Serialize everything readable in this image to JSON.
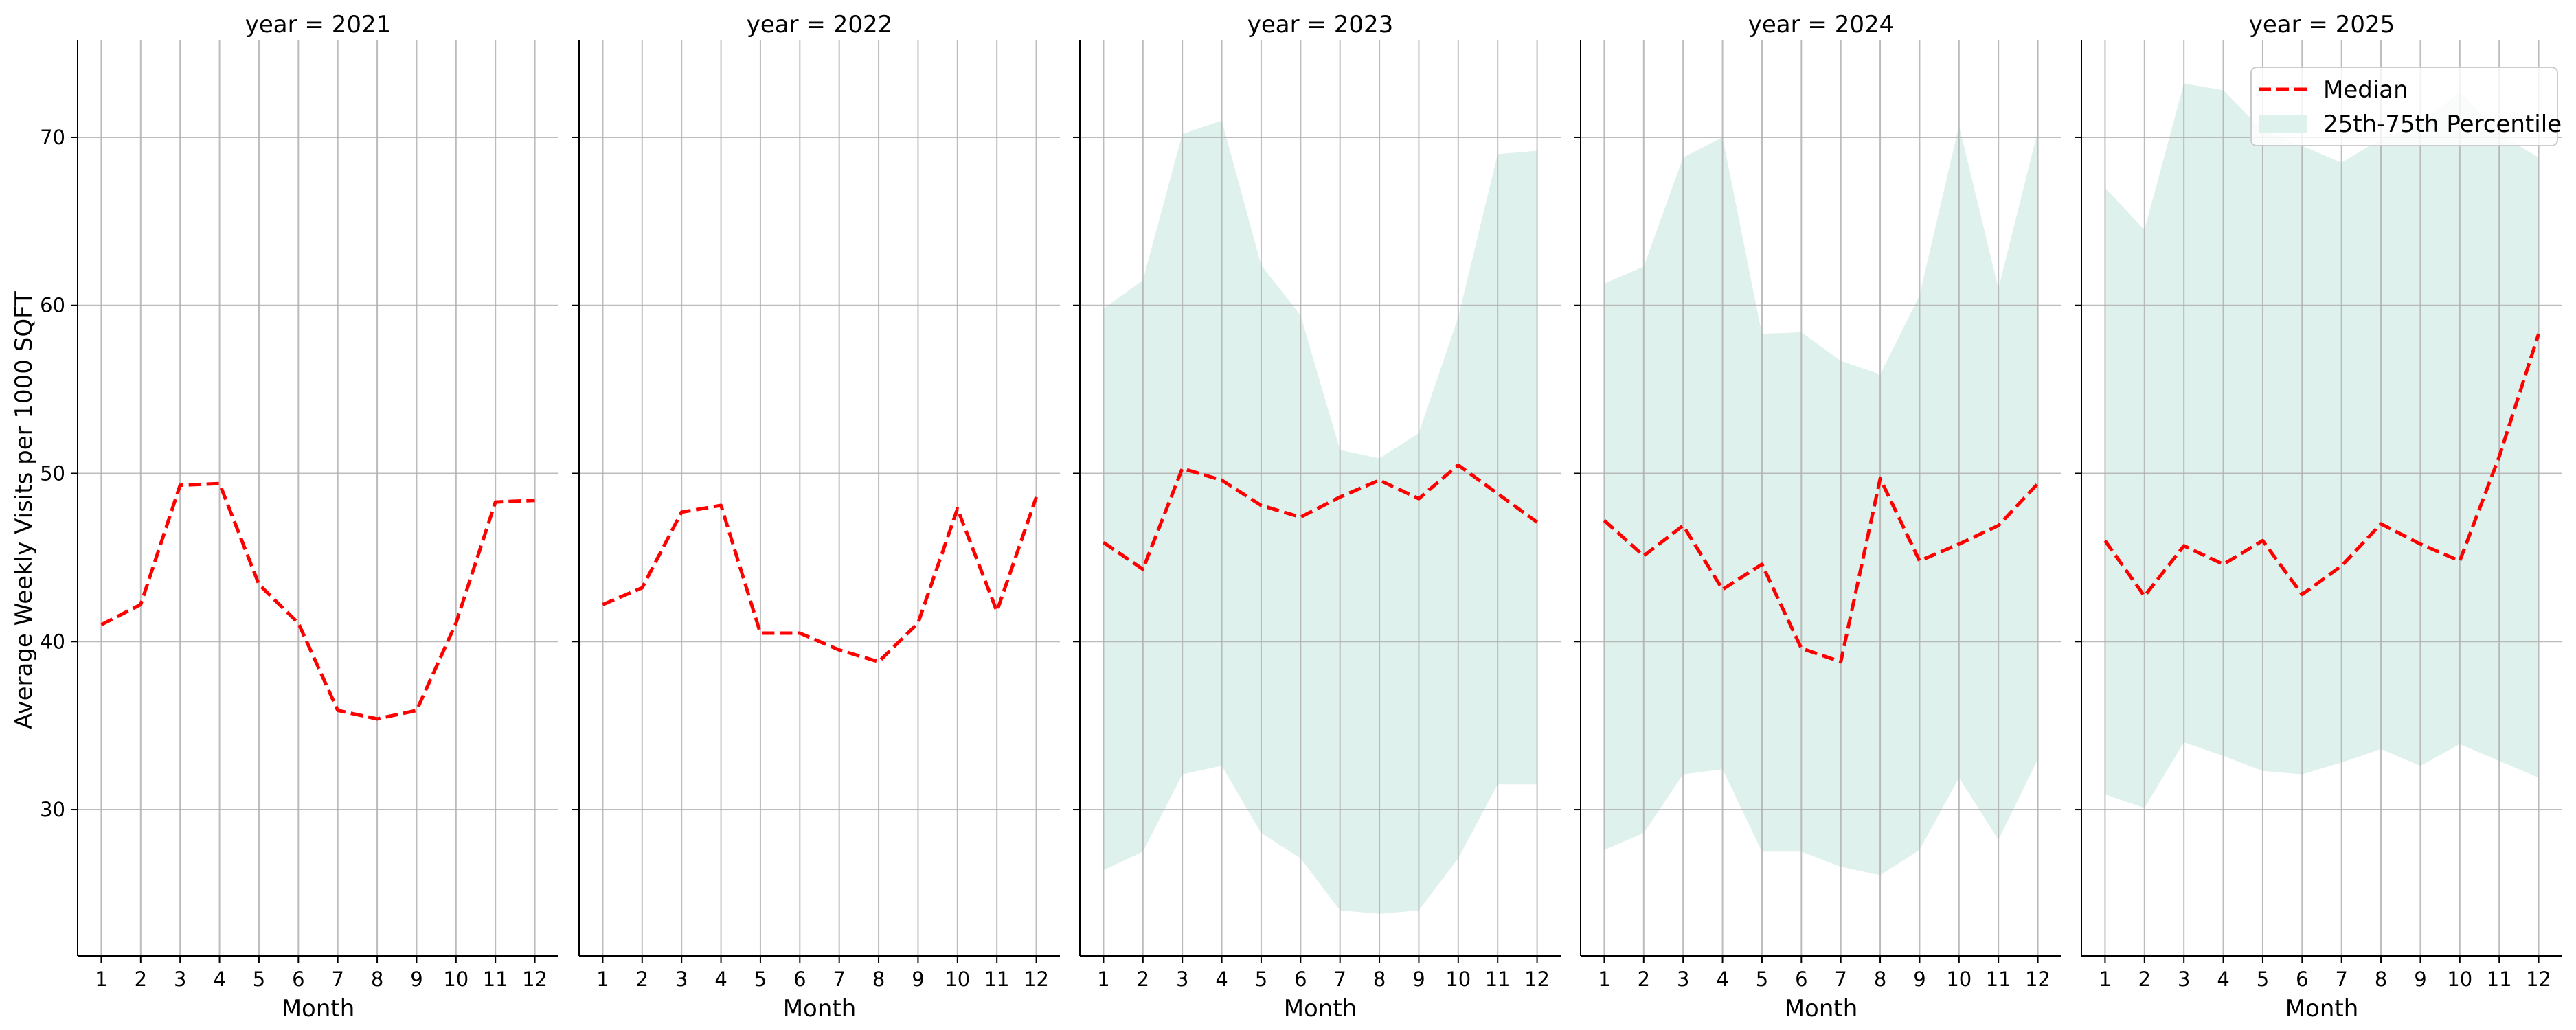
{
  "chart_data": {
    "type": "line",
    "facet_titles": [
      "year = 2021",
      "year = 2022",
      "year = 2023",
      "year = 2024",
      "year = 2025"
    ],
    "xlabel": "Month",
    "ylabel": "Average Weekly Visits per 1000 SQFT",
    "x_ticks": [
      1,
      2,
      3,
      4,
      5,
      6,
      7,
      8,
      9,
      10,
      11,
      12
    ],
    "y_ticks": [
      30,
      40,
      50,
      60,
      70
    ],
    "xlim": [
      0.4,
      12.6
    ],
    "ylim": [
      21.3,
      75.8
    ],
    "grid": true,
    "legend": {
      "position": "top-right",
      "entries": [
        "Median",
        "25th-75th Percentile"
      ]
    },
    "colors": {
      "median": "#ff0000",
      "band": "#dff1ec",
      "grid": "#b0b0b0",
      "axis": "#000000"
    },
    "panels": [
      {
        "year": 2021,
        "median": [
          41.0,
          42.2,
          49.3,
          49.4,
          43.4,
          41.1,
          35.9,
          35.4,
          35.9,
          41.1,
          48.3,
          48.4
        ],
        "p25": null,
        "p75": null
      },
      {
        "year": 2022,
        "median": [
          42.2,
          43.2,
          47.7,
          48.1,
          40.5,
          40.5,
          39.5,
          38.8,
          41.1,
          47.9,
          41.8,
          48.6
        ],
        "p25": null,
        "p75": null
      },
      {
        "year": 2023,
        "median": [
          45.9,
          44.3,
          50.3,
          49.6,
          48.1,
          47.4,
          48.6,
          49.6,
          48.5,
          50.5,
          48.8,
          47.1
        ],
        "p25": [
          26.4,
          27.5,
          32.1,
          32.6,
          28.6,
          27.1,
          24.0,
          23.8,
          24.0,
          27.1,
          31.5,
          31.5
        ],
        "p75": [
          59.8,
          61.5,
          70.2,
          71.0,
          62.4,
          59.4,
          51.4,
          50.9,
          52.4,
          59.3,
          69.0,
          69.2
        ]
      },
      {
        "year": 2024,
        "median": [
          47.2,
          45.1,
          46.9,
          43.1,
          44.6,
          39.6,
          38.8,
          49.7,
          44.8,
          45.8,
          46.9,
          49.4
        ],
        "p25": [
          27.6,
          28.6,
          32.1,
          32.4,
          27.5,
          27.5,
          26.6,
          26.1,
          27.6,
          31.9,
          28.2,
          33.0
        ],
        "p75": [
          61.3,
          62.3,
          68.8,
          70.0,
          58.3,
          58.4,
          56.7,
          55.9,
          60.6,
          70.7,
          61.0,
          70.4
        ]
      },
      {
        "year": 2025,
        "median": [
          46.0,
          42.7,
          45.7,
          44.6,
          46.0,
          42.8,
          44.5,
          47.0,
          45.8,
          44.8,
          51.0,
          58.3
        ],
        "p25": [
          30.9,
          30.1,
          34.0,
          33.2,
          32.3,
          32.1,
          32.8,
          33.6,
          32.6,
          33.9,
          32.9,
          31.9
        ],
        "p75": [
          67.0,
          64.5,
          73.2,
          72.8,
          70.4,
          69.5,
          68.5,
          69.9,
          70.8,
          72.7,
          70.2,
          68.8
        ]
      }
    ]
  }
}
